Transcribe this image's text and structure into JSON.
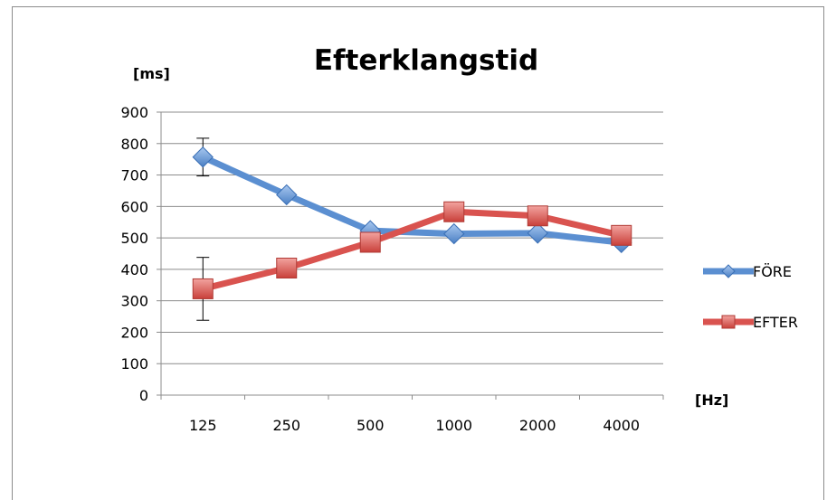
{
  "chart_data": {
    "type": "line",
    "title": "Efterklangstid",
    "ylabel": "[ms]",
    "xlabel": "[Hz]",
    "categories": [
      "125",
      "250",
      "500",
      "1000",
      "2000",
      "4000"
    ],
    "ylim": [
      0,
      900
    ],
    "yticks": [
      0,
      100,
      200,
      300,
      400,
      500,
      600,
      700,
      800,
      900
    ],
    "grid": true,
    "legend_position": "right",
    "series": [
      {
        "name": "FÖRE",
        "values": [
          757,
          637,
          523,
          513,
          515,
          485
        ],
        "color": "#5b8fd1",
        "marker": "diamond",
        "error": [
          60,
          0,
          0,
          0,
          0,
          0
        ]
      },
      {
        "name": "EFTER",
        "values": [
          338,
          404,
          486,
          583,
          570,
          508
        ],
        "color": "#d9534f",
        "marker": "square",
        "error": [
          100,
          0,
          0,
          0,
          0,
          0
        ]
      }
    ]
  }
}
